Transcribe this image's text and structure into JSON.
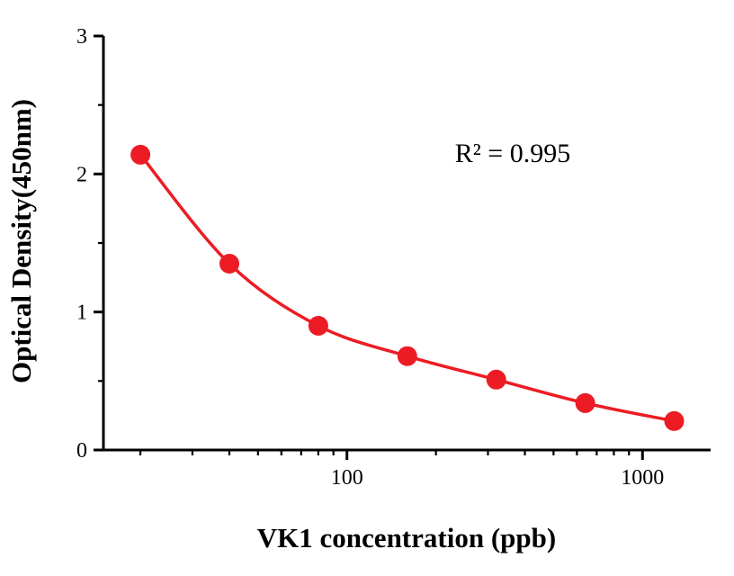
{
  "chart_data": {
    "type": "scatter",
    "title": "",
    "xlabel": "VK1 concentration (ppb)",
    "ylabel": "Optical Density(450nm)",
    "annotation": "R² = 0.995",
    "x": [
      20,
      40,
      80,
      160,
      320,
      640,
      1280
    ],
    "y": [
      2.14,
      1.35,
      0.9,
      0.68,
      0.51,
      0.34,
      0.21
    ],
    "x_scale": "log",
    "xlim": [
      15,
      1700
    ],
    "ylim": [
      0,
      3
    ],
    "x_ticks": [
      100,
      1000
    ],
    "x_tick_labels": [
      "100",
      "1000"
    ],
    "y_ticks": [
      0,
      1,
      2,
      3
    ],
    "y_tick_labels": [
      "0",
      "1",
      "2",
      "3"
    ],
    "y_minor_step": 0.5,
    "grid": false,
    "legend": "none",
    "curve": "fitted four-parameter logistic through points",
    "point_color": "#ed1c24",
    "line_color": "#ed1c24",
    "axis_color": "#000000",
    "background_color": "#ffffff"
  }
}
